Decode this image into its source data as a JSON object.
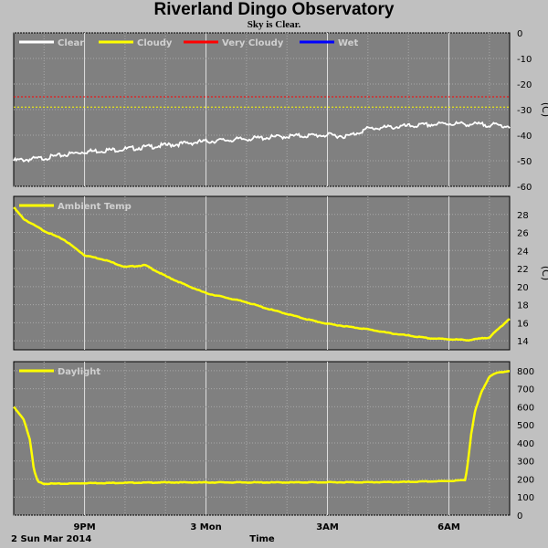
{
  "title": "Riverland Dingo Observatory",
  "subtitle": "Sky is Clear.",
  "footer": {
    "date": "2 Sun Mar 2014",
    "xlabel": "Time",
    "time_ticks": [
      {
        "label": "9PM",
        "t": 1
      },
      {
        "label": "3 Mon",
        "t": 4
      },
      {
        "label": "3AM",
        "t": 7
      },
      {
        "label": "6AM",
        "t": 10
      }
    ]
  },
  "chart_data": [
    {
      "type": "line",
      "panel": "sky",
      "ylabel": "(C)",
      "ylim": [
        -60,
        0
      ],
      "yticks": [
        0,
        -10,
        -20,
        -30,
        -40,
        -50,
        -60
      ],
      "xlim_hours_from_8pm": [
        -0.75,
        11.5
      ],
      "legend": [
        {
          "name": "Clear",
          "color": "#ffffff"
        },
        {
          "name": "Cloudy",
          "color": "#ffff00"
        },
        {
          "name": "Very Cloudy",
          "color": "#ff0000"
        },
        {
          "name": "Wet",
          "color": "#0000ff"
        }
      ],
      "thresholds": [
        {
          "name": "Very Cloudy",
          "value": -25,
          "color": "#ff0000"
        },
        {
          "name": "Cloudy",
          "value": -29,
          "color": "#ffff00"
        }
      ],
      "series": [
        {
          "name": "Clear",
          "color": "#ffffff",
          "x": [
            -0.75,
            0,
            1,
            2,
            3,
            4,
            5,
            6,
            7,
            7.5,
            8,
            8.5,
            9,
            10,
            11,
            11.5
          ],
          "y": [
            -49.5,
            -48.5,
            -46,
            -45,
            -43.5,
            -42,
            -41,
            -40,
            -39.5,
            -40,
            -37,
            -36.5,
            -36,
            -35,
            -35.5,
            -36
          ]
        }
      ]
    },
    {
      "type": "line",
      "panel": "ambient",
      "ylabel": "(C)",
      "ylim": [
        13,
        30
      ],
      "yticks": [
        14,
        16,
        18,
        20,
        22,
        24,
        26,
        28
      ],
      "legend": [
        {
          "name": "Ambient Temp",
          "color": "#ffff00"
        }
      ],
      "series": [
        {
          "name": "Ambient Temp",
          "color": "#ffff00",
          "x": [
            -0.75,
            -0.5,
            0,
            0.5,
            1,
            1.5,
            2,
            2.5,
            3,
            3.5,
            4,
            4.5,
            5,
            5.5,
            6,
            6.5,
            7,
            7.5,
            8,
            8.5,
            9,
            9.5,
            10,
            10.5,
            11,
            11.5
          ],
          "y": [
            28.8,
            27.5,
            26.2,
            25.2,
            23.5,
            23.0,
            22.2,
            22.4,
            21.2,
            20.2,
            19.3,
            18.8,
            18.3,
            17.6,
            17.0,
            16.4,
            15.9,
            15.6,
            15.3,
            14.9,
            14.6,
            14.3,
            14.2,
            14.1,
            14.4,
            16.5
          ]
        }
      ]
    },
    {
      "type": "line",
      "panel": "daylight",
      "ylim": [
        0,
        850
      ],
      "yticks": [
        0,
        100,
        200,
        300,
        400,
        500,
        600,
        700,
        800
      ],
      "legend": [
        {
          "name": "Daylight",
          "color": "#ffff00"
        }
      ],
      "series": [
        {
          "name": "Daylight",
          "color": "#ffff00",
          "x": [
            -0.75,
            -0.5,
            -0.35,
            -0.25,
            -0.15,
            0,
            0.5,
            1,
            2,
            3,
            4,
            5,
            6,
            7,
            8,
            9,
            10,
            10.4,
            10.45,
            10.55,
            10.65,
            10.8,
            11,
            11.2,
            11.5
          ],
          "y": [
            600,
            530,
            420,
            250,
            185,
            175,
            175,
            178,
            180,
            182,
            182,
            182,
            182,
            183,
            183,
            185,
            190,
            195,
            260,
            450,
            580,
            680,
            770,
            790,
            800
          ]
        }
      ]
    }
  ]
}
